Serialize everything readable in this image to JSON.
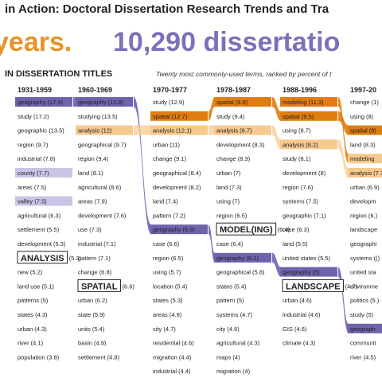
{
  "header": {
    "title": "in Action: Doctoral Dissertation Research Trends and Tra",
    "big_left": "years.",
    "big_right": "10,290 dissertatio"
  },
  "section": {
    "title": "IN DISSERTATION TITLES",
    "subtitle": "Twenty most commonly-used terms, ranked by percent of t"
  },
  "colors": {
    "orange_dark": "#e07d10",
    "orange_light": "#f6c98e",
    "purple_dark": "#6d64ad",
    "purple_light": "#c9c5e6"
  },
  "chart_data": {
    "type": "table",
    "columns": [
      {
        "period": "1931-1959",
        "terms": [
          {
            "term": "geography",
            "value": "17.9",
            "hl": "purple-dark"
          },
          {
            "term": "study",
            "value": "17.2"
          },
          {
            "term": "geographic",
            "value": "13.5"
          },
          {
            "term": "region",
            "value": "9.7"
          },
          {
            "term": "industrial",
            "value": "7.8"
          },
          {
            "term": "county",
            "value": "7.7",
            "hl": "purple-light"
          },
          {
            "term": "areas",
            "value": "7.5"
          },
          {
            "term": "valley",
            "value": "7.5",
            "hl": "purple-light"
          },
          {
            "term": "agricultural",
            "value": "6.3"
          },
          {
            "term": "settlement",
            "value": "5.5"
          },
          {
            "term": "development",
            "value": "5.3"
          },
          {
            "term": "ANALYSIS",
            "value": "5.3",
            "callout": true
          },
          {
            "term": "new",
            "value": "5.2"
          },
          {
            "term": "land use",
            "value": "5.1"
          },
          {
            "term": "patterns",
            "value": "5"
          },
          {
            "term": "states",
            "value": "4.3"
          },
          {
            "term": "urban",
            "value": "4.3"
          },
          {
            "term": "river",
            "value": "4.1"
          },
          {
            "term": "population",
            "value": "3.8"
          }
        ]
      },
      {
        "period": "1960-1969",
        "terms": [
          {
            "term": "geography",
            "value": "13.8",
            "hl": "purple-dark"
          },
          {
            "term": "studying",
            "value": "13.5"
          },
          {
            "term": "analysis",
            "value": "12",
            "hl": "orange-light"
          },
          {
            "term": "geographical",
            "value": "9.7"
          },
          {
            "term": "region",
            "value": "9.4"
          },
          {
            "term": "land",
            "value": "8.1"
          },
          {
            "term": "agricultural",
            "value": "8.6"
          },
          {
            "term": "areas",
            "value": "7.9"
          },
          {
            "term": "development",
            "value": "7.6"
          },
          {
            "term": "use",
            "value": "7.3"
          },
          {
            "term": "industrial",
            "value": "7.1"
          },
          {
            "term": "pattern",
            "value": "7.1"
          },
          {
            "term": "change",
            "value": "6.8"
          },
          {
            "term": "SPATIAL",
            "value": "6.6",
            "callout": true
          },
          {
            "term": "urban",
            "value": "6.2"
          },
          {
            "term": "state",
            "value": "5.9"
          },
          {
            "term": "units",
            "value": "5.4"
          },
          {
            "term": "basin",
            "value": "4.9"
          },
          {
            "term": "settlement",
            "value": "4.8"
          }
        ]
      },
      {
        "period": "1970-1977",
        "terms": [
          {
            "term": "study",
            "value": "12.9"
          },
          {
            "term": "spatial",
            "value": "12.7",
            "hl": "orange-dark"
          },
          {
            "term": "analysis",
            "value": "12.1",
            "hl": "orange-light"
          },
          {
            "term": "urban",
            "value": "11"
          },
          {
            "term": "change",
            "value": "9.1"
          },
          {
            "term": "geographical",
            "value": "8.4"
          },
          {
            "term": "development",
            "value": "8.2"
          },
          {
            "term": "land",
            "value": "7.4"
          },
          {
            "term": "pattern",
            "value": "7.2"
          },
          {
            "term": "geography",
            "value": "6.9",
            "hl": "purple-dark"
          },
          {
            "term": "case",
            "value": "6.6"
          },
          {
            "term": "region",
            "value": "6.5"
          },
          {
            "term": "using",
            "value": "5.7"
          },
          {
            "term": "location",
            "value": "5.4"
          },
          {
            "term": "states",
            "value": "5.3"
          },
          {
            "term": "areas",
            "value": "4.9"
          },
          {
            "term": "city",
            "value": "4.7"
          },
          {
            "term": "residential",
            "value": "4.6"
          },
          {
            "term": "migration",
            "value": "4.4"
          },
          {
            "term": "industrial",
            "value": "4.4"
          }
        ]
      },
      {
        "period": "1978-1987",
        "terms": [
          {
            "term": "spatial",
            "value": "9.8",
            "hl": "orange-dark"
          },
          {
            "term": "study",
            "value": "9.4"
          },
          {
            "term": "analysis",
            "value": "8.7",
            "hl": "orange-light"
          },
          {
            "term": "development",
            "value": "8.3"
          },
          {
            "term": "change",
            "value": "8.3"
          },
          {
            "term": "urban",
            "value": "7"
          },
          {
            "term": "land",
            "value": "7.3"
          },
          {
            "term": "using",
            "value": "7"
          },
          {
            "term": "region",
            "value": "6.5"
          },
          {
            "term": "MODEL(ING)",
            "value": "6.4",
            "callout": true
          },
          {
            "term": "case",
            "value": "6.4"
          },
          {
            "term": "geography",
            "value": "6.1",
            "hl": "purple-dark"
          },
          {
            "term": "geographical",
            "value": "5.8"
          },
          {
            "term": "states",
            "value": "5.4"
          },
          {
            "term": "pattern",
            "value": "5"
          },
          {
            "term": "systems",
            "value": "4.7"
          },
          {
            "term": "city",
            "value": "4.6"
          },
          {
            "term": "agricultural",
            "value": "4.3"
          },
          {
            "term": "maps",
            "value": "4"
          },
          {
            "term": "migration",
            "value": "4"
          }
        ]
      },
      {
        "period": "1988-1996",
        "terms": [
          {
            "term": "modeling",
            "value": "11.3",
            "hl": "orange-dark"
          },
          {
            "term": "spatial",
            "value": "9.5",
            "hl": "orange-dark"
          },
          {
            "term": "using",
            "value": "8.7"
          },
          {
            "term": "analysis",
            "value": "8.2",
            "hl": "orange-light"
          },
          {
            "term": "study",
            "value": "8.1"
          },
          {
            "term": "development",
            "value": "8"
          },
          {
            "term": "region",
            "value": "7.6"
          },
          {
            "term": "systems",
            "value": "7.5"
          },
          {
            "term": "geographic",
            "value": "7.1"
          },
          {
            "term": "case",
            "value": "6.3"
          },
          {
            "term": "land",
            "value": "5.5"
          },
          {
            "term": "united states",
            "value": "5.5"
          },
          {
            "term": "geography",
            "value": "5",
            "hl": "purple-dark"
          },
          {
            "term": "LANDSCAPE",
            "value": "4.7",
            "callout": true
          },
          {
            "term": "urban",
            "value": "4.6"
          },
          {
            "term": "industrial",
            "value": "4.6"
          },
          {
            "term": "GIS",
            "value": "4.6"
          },
          {
            "term": "climate",
            "value": "4.3"
          }
        ]
      },
      {
        "period": "1997-20",
        "terms": [
          {
            "term": "change",
            "value": "1",
            "hl": "white"
          },
          {
            "term": "using",
            "value": "8",
            "hl": "white"
          },
          {
            "term": "spatial",
            "value": "8",
            "hl": "orange-dark"
          },
          {
            "term": "land",
            "value": "8.3"
          },
          {
            "term": "modeling",
            "value": "",
            "hl": "orange-light"
          },
          {
            "term": "analysis",
            "value": "7.7",
            "hl": "orange-light"
          },
          {
            "term": "urban",
            "value": "6.9"
          },
          {
            "term": "developm",
            "value": ""
          },
          {
            "term": "region",
            "value": "6."
          },
          {
            "term": "landscape",
            "value": ""
          },
          {
            "term": "geographi",
            "value": ""
          },
          {
            "term": "systems",
            "value": "("
          },
          {
            "term": "united sta",
            "value": ""
          },
          {
            "term": "environme",
            "value": ""
          },
          {
            "term": "politics",
            "value": "5."
          },
          {
            "term": "study",
            "value": "5"
          },
          {
            "term": "geograph",
            "value": "",
            "hl": "purple-dark"
          },
          {
            "term": "communit",
            "value": ""
          },
          {
            "term": "river",
            "value": "4.5"
          }
        ]
      }
    ],
    "grid": false
  }
}
